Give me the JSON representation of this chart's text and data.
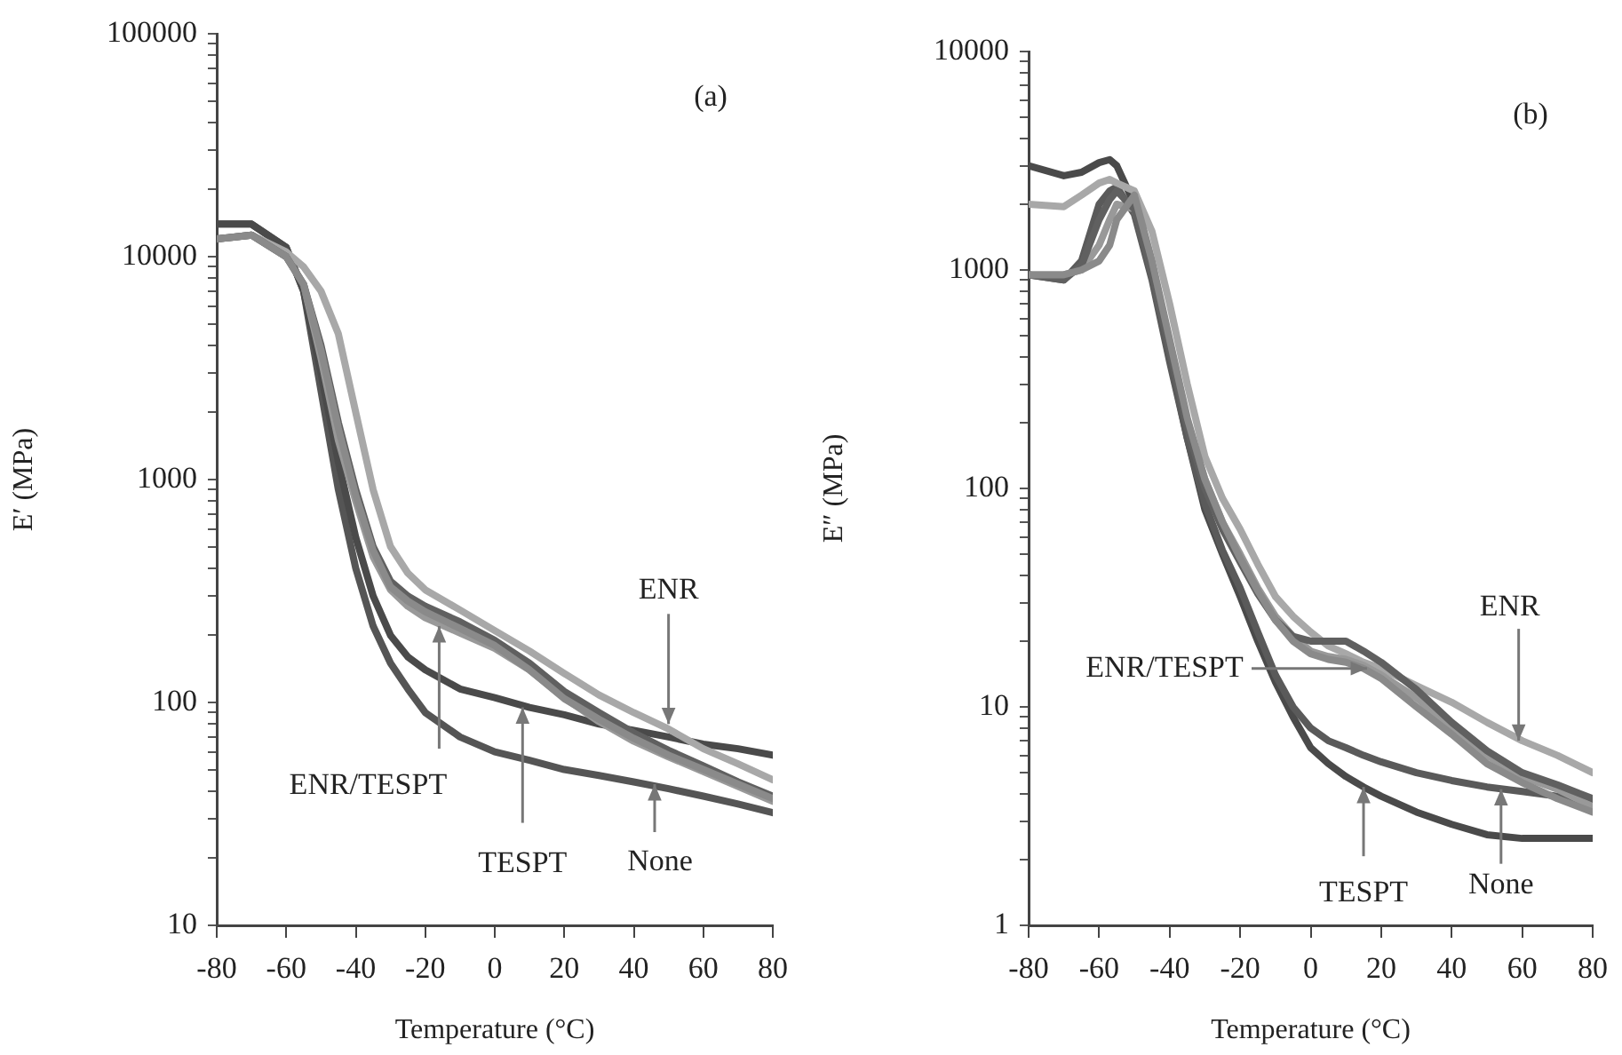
{
  "chart_data": [
    {
      "type": "line",
      "xlabel": "Temperature (°C)",
      "ylabel": "E′ (MPa)",
      "log": true,
      "grid": false,
      "legend": false,
      "marker": "none",
      "line_style": "solid",
      "xlim": [
        -80,
        80
      ],
      "xticks": [
        -80,
        -60,
        -40,
        -20,
        0,
        20,
        40,
        60,
        80
      ],
      "ylim": [
        10,
        100000
      ],
      "yticks": [
        10,
        {
          "value": 20,
          "label": null
        },
        {
          "value": 30,
          "label": null
        },
        {
          "value": 40,
          "label": null
        },
        {
          "value": 50,
          "label": null
        },
        {
          "value": 60,
          "label": null
        },
        {
          "value": 70,
          "label": null
        },
        {
          "value": 80,
          "label": null
        },
        {
          "value": 90,
          "label": null
        },
        100,
        {
          "value": 200,
          "label": null
        },
        {
          "value": 300,
          "label": null
        },
        {
          "value": 400,
          "label": null
        },
        {
          "value": 500,
          "label": null
        },
        {
          "value": 600,
          "label": null
        },
        {
          "value": 700,
          "label": null
        },
        {
          "value": 800,
          "label": null
        },
        {
          "value": 900,
          "label": null
        },
        1000,
        {
          "value": 2000,
          "label": null
        },
        {
          "value": 3000,
          "label": null
        },
        {
          "value": 4000,
          "label": null
        },
        {
          "value": 5000,
          "label": null
        },
        {
          "value": 6000,
          "label": null
        },
        {
          "value": 7000,
          "label": null
        },
        {
          "value": 8000,
          "label": null
        },
        {
          "value": 9000,
          "label": null
        },
        10000,
        {
          "value": 20000,
          "label": null
        },
        {
          "value": 30000,
          "label": null
        },
        {
          "value": 40000,
          "label": null
        },
        {
          "value": 50000,
          "label": null
        },
        {
          "value": 60000,
          "label": null
        },
        {
          "value": 70000,
          "label": null
        },
        {
          "value": 80000,
          "label": null
        },
        {
          "value": 90000,
          "label": null
        },
        100000
      ],
      "x": [
        -80,
        -70,
        -60,
        -55,
        -50,
        -45,
        -40,
        -35,
        -30,
        -25,
        -20,
        -10,
        0,
        10,
        20,
        30,
        40,
        50,
        60,
        70,
        80
      ],
      "series": [
        {
          "color": "#555555",
          "values": [
            14000,
            14000,
            11000,
            7000,
            2500,
            900,
            400,
            220,
            150,
            115,
            90,
            70,
            60,
            55,
            50,
            47,
            44,
            41,
            38,
            35,
            32
          ]
        },
        {
          "color": "#4a4a4a",
          "values": [
            14000,
            14000,
            11000,
            7000,
            3000,
            1200,
            550,
            300,
            200,
            160,
            140,
            115,
            105,
            95,
            88,
            80,
            75,
            70,
            65,
            62,
            58
          ]
        },
        {
          "color": "#a8a8a8",
          "values": [
            12000,
            12500,
            10500,
            9000,
            7000,
            4500,
            2000,
            900,
            500,
            380,
            320,
            260,
            210,
            170,
            135,
            108,
            90,
            76,
            62,
            53,
            45
          ]
        },
        {
          "color": "#999999",
          "values": [
            12000,
            12500,
            10000,
            7500,
            3500,
            1500,
            800,
            450,
            320,
            270,
            240,
            205,
            175,
            140,
            105,
            82,
            67,
            57,
            49,
            42,
            36
          ]
        },
        {
          "color": "#606060",
          "values": [
            12000,
            12500,
            10000,
            7500,
            4000,
            1800,
            900,
            500,
            350,
            300,
            270,
            230,
            190,
            150,
            112,
            90,
            73,
            61,
            52,
            44,
            38
          ]
        },
        {
          "color": "#8a8a8a",
          "values": [
            12000,
            12500,
            10000,
            7500,
            3800,
            1700,
            850,
            480,
            330,
            285,
            255,
            215,
            180,
            140,
            104,
            84,
            69,
            58,
            50,
            43,
            37
          ]
        }
      ],
      "annotations": [
        "(a)",
        {
          "text": "ENR",
          "x": 50,
          "y": 80
        },
        {
          "text": "ENR/TESPT",
          "x": -16,
          "y": 220
        },
        {
          "text": "TESPT",
          "x": 8,
          "y": 95
        },
        {
          "text": "None",
          "x": 46,
          "y": 43
        }
      ]
    },
    {
      "type": "line",
      "xlabel": "Temperature (°C)",
      "ylabel": "E″ (MPa)",
      "log": true,
      "grid": false,
      "legend": false,
      "marker": "none",
      "line_style": "solid",
      "xlim": [
        -80,
        80
      ],
      "xticks": [
        -80,
        -60,
        -40,
        -20,
        0,
        20,
        40,
        60,
        80
      ],
      "ylim": [
        1,
        10000
      ],
      "yticks": [
        1,
        {
          "value": 2,
          "label": null
        },
        {
          "value": 3,
          "label": null
        },
        {
          "value": 4,
          "label": null
        },
        {
          "value": 5,
          "label": null
        },
        {
          "value": 6,
          "label": null
        },
        {
          "value": 7,
          "label": null
        },
        {
          "value": 8,
          "label": null
        },
        {
          "value": 9,
          "label": null
        },
        10,
        {
          "value": 20,
          "label": null
        },
        {
          "value": 30,
          "label": null
        },
        {
          "value": 40,
          "label": null
        },
        {
          "value": 50,
          "label": null
        },
        {
          "value": 60,
          "label": null
        },
        {
          "value": 70,
          "label": null
        },
        {
          "value": 80,
          "label": null
        },
        {
          "value": 90,
          "label": null
        },
        100,
        {
          "value": 200,
          "label": null
        },
        {
          "value": 300,
          "label": null
        },
        {
          "value": 400,
          "label": null
        },
        {
          "value": 500,
          "label": null
        },
        {
          "value": 600,
          "label": null
        },
        {
          "value": 700,
          "label": null
        },
        {
          "value": 800,
          "label": null
        },
        {
          "value": 900,
          "label": null
        },
        1000,
        {
          "value": 2000,
          "label": null
        },
        {
          "value": 3000,
          "label": null
        },
        {
          "value": 4000,
          "label": null
        },
        {
          "value": 5000,
          "label": null
        },
        {
          "value": 6000,
          "label": null
        },
        {
          "value": 7000,
          "label": null
        },
        {
          "value": 8000,
          "label": null
        },
        {
          "value": 9000,
          "label": null
        },
        10000
      ],
      "x": [
        -80,
        -70,
        -65,
        -60,
        -57,
        -55,
        -50,
        -45,
        -40,
        -35,
        -30,
        -25,
        -20,
        -15,
        -10,
        -5,
        0,
        5,
        10,
        15,
        20,
        30,
        40,
        50,
        60,
        70,
        80
      ],
      "series": [
        {
          "color": "#4a4a4a",
          "values": [
            3000,
            2700,
            2800,
            3100,
            3200,
            3000,
            2000,
            1000,
            400,
            170,
            80,
            50,
            32,
            20,
            13,
            9,
            6.5,
            5.5,
            4.8,
            4.3,
            3.9,
            3.3,
            2.9,
            2.6,
            2.5,
            2.5,
            2.5
          ]
        },
        {
          "color": "#5a5a5a",
          "values": [
            950,
            900,
            1100,
            2000,
            2300,
            2400,
            1800,
            900,
            380,
            170,
            85,
            52,
            35,
            22,
            14,
            10,
            8,
            7,
            6.5,
            6,
            5.6,
            5,
            4.6,
            4.3,
            4.1,
            3.9,
            3.6
          ]
        },
        {
          "color": "#a8a8a8",
          "values": [
            2000,
            1950,
            2200,
            2500,
            2600,
            2500,
            2300,
            1500,
            700,
            300,
            140,
            90,
            65,
            45,
            32,
            26,
            22,
            19,
            17.5,
            16,
            15,
            12.5,
            10.5,
            8.5,
            7,
            6,
            5
          ]
        },
        {
          "color": "#999999",
          "values": [
            950,
            950,
            1000,
            1300,
            1700,
            2000,
            1900,
            1000,
            450,
            200,
            110,
            70,
            50,
            35,
            26,
            21,
            18,
            17,
            16.5,
            15.5,
            14,
            11,
            8,
            6,
            4.8,
            4.2,
            3.5
          ]
        },
        {
          "color": "#606060",
          "values": [
            950,
            900,
            1050,
            1700,
            2100,
            2300,
            1900,
            950,
            430,
            190,
            100,
            65,
            46,
            33,
            25,
            21,
            20,
            20,
            20,
            18,
            16,
            12,
            8.5,
            6.3,
            5,
            4.4,
            3.8
          ]
        },
        {
          "color": "#8a8a8a",
          "values": [
            950,
            950,
            1000,
            1100,
            1300,
            1700,
            2200,
            1100,
            480,
            210,
            110,
            70,
            48,
            34,
            25,
            20,
            17.5,
            16.5,
            16,
            15,
            13.5,
            10,
            7.5,
            5.5,
            4.5,
            3.8,
            3.3
          ]
        }
      ],
      "annotations": [
        "(b)",
        {
          "text": "ENR",
          "x": 59,
          "y": 7
        },
        {
          "text": "ENR/TESPT",
          "x": 16,
          "y": 15
        },
        {
          "text": "TESPT",
          "x": 15,
          "y": 4.3
        },
        {
          "text": "None",
          "x": 54,
          "y": 4.2
        }
      ]
    }
  ]
}
